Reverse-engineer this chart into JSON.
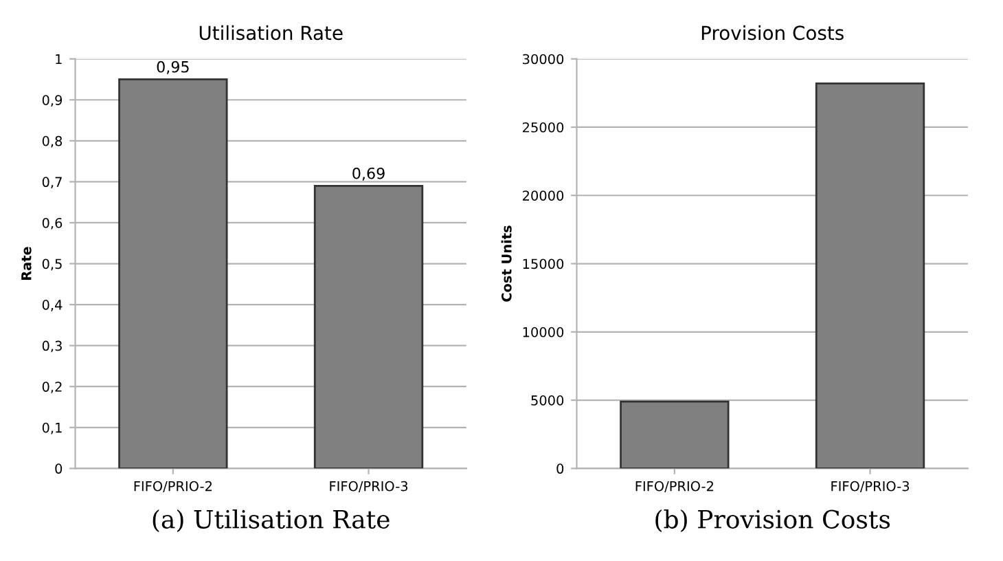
{
  "chart_data": [
    {
      "type": "bar",
      "title": "Utilisation Rate",
      "ylabel": "Rate",
      "categories": [
        "FIFO/PRIO-2",
        "FIFO/PRIO-3"
      ],
      "values": [
        0.95,
        0.69
      ],
      "value_labels": [
        "0,95",
        "0,69"
      ],
      "color": "#808080",
      "ylim": [
        0,
        1
      ],
      "yticks": [
        0,
        {
          "value": 0.1,
          "label": "0,1"
        },
        {
          "value": 0.2,
          "label": "0,2"
        },
        {
          "value": 0.3,
          "label": "0,3"
        },
        {
          "value": 0.4,
          "label": "0,4"
        },
        {
          "value": 0.5,
          "label": "0,5"
        },
        {
          "value": 0.6,
          "label": "0,6"
        },
        {
          "value": 0.7,
          "label": "0,7"
        },
        {
          "value": 0.8,
          "label": "0,8"
        },
        {
          "value": 0.9,
          "label": "0,9"
        },
        1
      ],
      "grid": "y",
      "annotations": [
        "(a) Utilisation Rate"
      ]
    },
    {
      "type": "bar",
      "title": "Provision Costs",
      "ylabel": "Cost Units",
      "categories": [
        "FIFO/PRIO-2",
        "FIFO/PRIO-3"
      ],
      "values": [
        4900,
        28200
      ],
      "color": "#808080",
      "ylim": [
        0,
        30000
      ],
      "yticks": [
        0,
        5000,
        10000,
        15000,
        20000,
        25000,
        30000
      ],
      "grid": "y",
      "annotations": [
        "(b) Provision Costs"
      ]
    }
  ]
}
